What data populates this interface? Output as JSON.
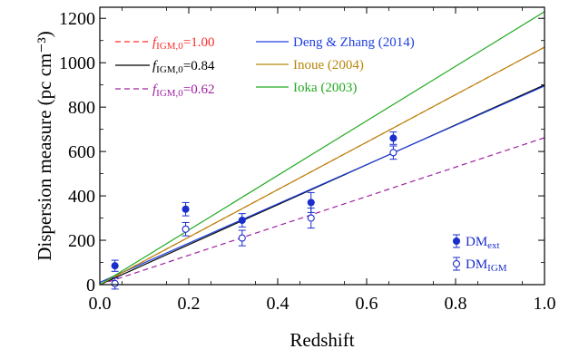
{
  "chart_data": {
    "type": "scatter",
    "xlabel": "Redshift",
    "ylabel": "Dispersion measure (pc cm⁻³)",
    "xlim": [
      0,
      1.0
    ],
    "ylim": [
      0,
      1250
    ],
    "x_ticks": [
      0.0,
      0.2,
      0.4,
      0.6,
      0.8,
      1.0
    ],
    "x_tick_labels": [
      "0.0",
      "0.2",
      "0.4",
      "0.6",
      "0.8",
      "1.0"
    ],
    "y_ticks": [
      0,
      200,
      400,
      600,
      800,
      1000,
      1200
    ],
    "y_tick_labels": [
      "0",
      "200",
      "400",
      "600",
      "800",
      "1000",
      "1200"
    ],
    "grid": false,
    "lines": [
      {
        "name": "f_IGM,0=1.00",
        "label_main": "f",
        "label_sub": "IGM,0",
        "label_value": "=1.00",
        "color": "#ff2a2a",
        "dash": "dashed",
        "x": [
          0,
          1.0
        ],
        "y": [
          0,
          1070
        ]
      },
      {
        "name": "f_IGM,0=0.84",
        "label_main": "f",
        "label_sub": "IGM,0",
        "label_value": "=0.84",
        "color": "#000000",
        "dash": "solid",
        "x": [
          0,
          1.0
        ],
        "y": [
          0,
          900
        ]
      },
      {
        "name": "f_IGM,0=0.62",
        "label_main": "f",
        "label_sub": "IGM,0",
        "label_value": "=0.62",
        "color": "#a020a0",
        "dash": "dashed",
        "x": [
          0,
          1.0
        ],
        "y": [
          0,
          662
        ]
      },
      {
        "name": "Deng & Zhang (2014)",
        "color": "#1f3fe0",
        "dash": "solid",
        "x": [
          0,
          1.0
        ],
        "y": [
          10,
          895
        ]
      },
      {
        "name": "Inoue (2004)",
        "color": "#b8860b",
        "dash": "solid",
        "x": [
          0,
          1.0
        ],
        "y": [
          0,
          1070
        ]
      },
      {
        "name": "Ioka (2003)",
        "color": "#22aa22",
        "dash": "solid",
        "x": [
          0,
          1.0
        ],
        "y": [
          0,
          1230
        ]
      }
    ],
    "points": [
      {
        "name": "DM_ext",
        "label_main": "DM",
        "label_sub": "ext",
        "filled": true,
        "color": "#1a2ecc",
        "x": [
          0.034,
          0.193,
          0.32,
          0.475,
          0.66
        ],
        "y": [
          85,
          340,
          290,
          370,
          660
        ],
        "err": [
          25,
          30,
          30,
          45,
          28
        ]
      },
      {
        "name": "DM_IGM",
        "label_main": "DM",
        "label_sub": "IGM",
        "filled": false,
        "color": "#1a2ecc",
        "x": [
          0.034,
          0.193,
          0.32,
          0.475,
          0.66
        ],
        "y": [
          5,
          250,
          210,
          300,
          595
        ],
        "err": [
          25,
          30,
          35,
          45,
          30
        ]
      }
    ]
  }
}
